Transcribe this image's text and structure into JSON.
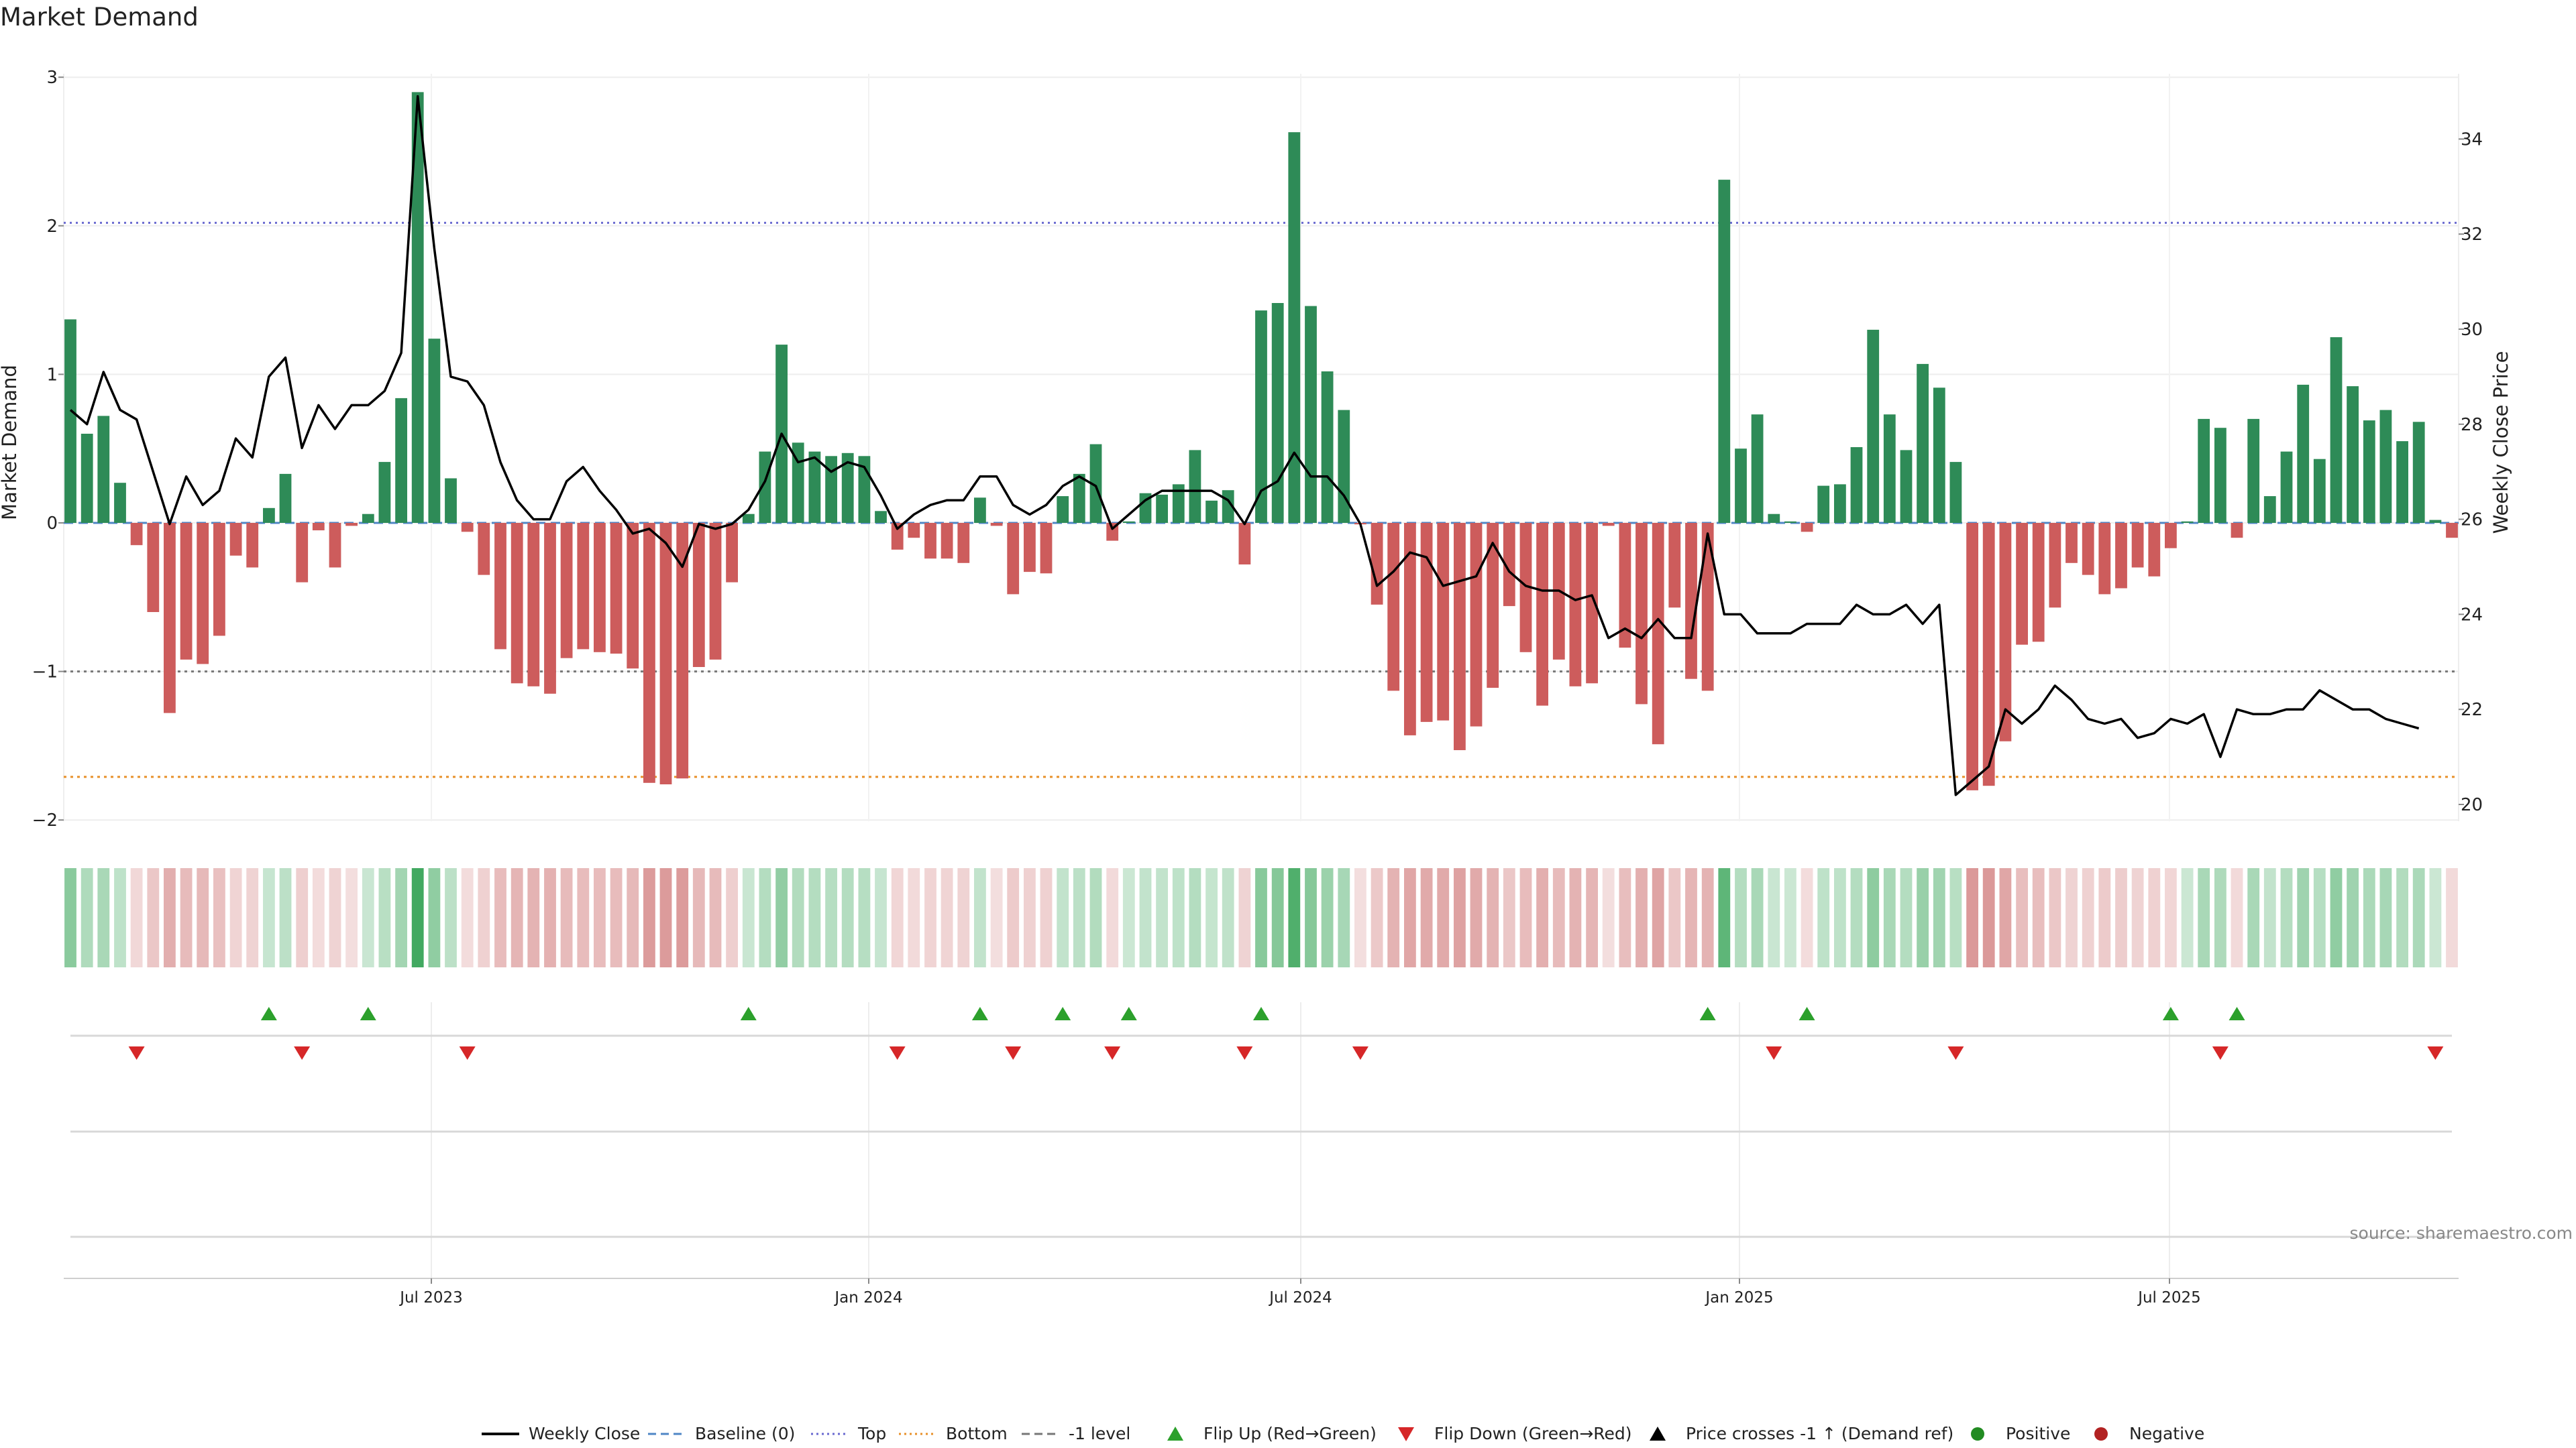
{
  "chart_data": {
    "type": "bar",
    "title": "Market Demand",
    "ylabel_left": "Market Demand",
    "ylabel_right": "Weekly Close Price",
    "ylim_left": [
      -2,
      3
    ],
    "ylim_right": [
      20,
      35
    ],
    "yticks_left": [
      "3",
      "2",
      "1",
      "0",
      "−1",
      "−2"
    ],
    "yticks_right": [
      "34",
      "32",
      "30",
      "28",
      "26",
      "24",
      "22",
      "20"
    ],
    "x_labels": [
      "Jul 2023",
      "Jan 2024",
      "Jul 2024",
      "Jan 2025",
      "Jul 2025"
    ],
    "source": "source: sharemaestro.com",
    "reference_lines": {
      "top": 2.02,
      "minus_one": -1.0,
      "bottom": -1.71,
      "baseline": 0
    },
    "colors": {
      "positive": "#2e8b57",
      "negative": "#cd5c5c",
      "price": "#000000",
      "top": "#6a6ad0",
      "bottom": "#e8902a",
      "minus_one": "#777777",
      "flip_up": "#2ca02c",
      "flip_down": "#d62728"
    },
    "demand": [
      1.37,
      0.6,
      0.72,
      0.27,
      -0.15,
      -0.6,
      -1.28,
      -0.92,
      -0.95,
      -0.76,
      -0.22,
      -0.3,
      0.1,
      0.33,
      -0.4,
      -0.05,
      -0.3,
      -0.02,
      0.06,
      0.41,
      0.84,
      2.9,
      1.24,
      0.3,
      -0.06,
      -0.35,
      -0.85,
      -1.08,
      -1.1,
      -1.15,
      -0.91,
      -0.85,
      -0.87,
      -0.88,
      -0.98,
      -1.75,
      -1.76,
      -1.72,
      -0.97,
      -0.92,
      -0.4,
      0.06,
      0.48,
      1.2,
      0.54,
      0.48,
      0.45,
      0.47,
      0.45,
      0.08,
      -0.18,
      -0.1,
      -0.24,
      -0.24,
      -0.27,
      0.17,
      -0.02,
      -0.48,
      -0.33,
      -0.34,
      0.18,
      0.33,
      0.53,
      -0.12,
      0.01,
      0.2,
      0.19,
      0.26,
      0.49,
      0.15,
      0.22,
      -0.28,
      1.43,
      1.48,
      2.63,
      1.46,
      1.02,
      0.76,
      -0.01,
      -0.55,
      -1.13,
      -1.43,
      -1.34,
      -1.33,
      -1.53,
      -1.37,
      -1.11,
      -0.56,
      -0.87,
      -1.23,
      -0.92,
      -1.1,
      -1.08,
      -0.02,
      -0.84,
      -1.22,
      -1.49,
      -0.57,
      -1.05,
      -1.13,
      2.31,
      0.5,
      0.73,
      0.06,
      0.01,
      -0.06,
      0.25,
      0.26,
      0.51,
      1.3,
      0.73,
      0.49,
      1.07,
      0.91,
      0.41,
      -1.8,
      -1.77,
      -1.47,
      -0.82,
      -0.8,
      -0.57,
      -0.27,
      -0.35,
      -0.48,
      -0.44,
      -0.3,
      -0.36,
      -0.17,
      0.01,
      0.7,
      0.64,
      -0.1,
      0.7,
      0.18,
      0.48,
      0.93,
      0.43,
      1.25,
      0.92,
      0.69,
      0.76,
      0.55,
      0.68,
      0.02,
      -0.1
    ],
    "price": [
      28.3,
      28.0,
      29.1,
      28.3,
      28.1,
      27.0,
      25.9,
      26.9,
      26.3,
      26.6,
      27.7,
      27.3,
      29.0,
      29.4,
      27.5,
      28.4,
      27.9,
      28.4,
      28.4,
      28.7,
      29.5,
      34.9,
      31.7,
      29.0,
      28.9,
      28.4,
      27.2,
      26.4,
      26.0,
      26.0,
      26.8,
      27.1,
      26.6,
      26.2,
      25.7,
      25.8,
      25.5,
      25.0,
      25.9,
      25.8,
      25.9,
      26.2,
      26.8,
      27.8,
      27.2,
      27.3,
      27.0,
      27.2,
      27.1,
      26.5,
      25.8,
      26.1,
      26.3,
      26.4,
      26.4,
      26.9,
      26.9,
      26.3,
      26.1,
      26.3,
      26.7,
      26.9,
      26.7,
      25.8,
      26.1,
      26.4,
      26.6,
      26.6,
      26.6,
      26.6,
      26.4,
      25.9,
      26.6,
      26.8,
      27.4,
      26.9,
      26.9,
      26.5,
      25.9,
      24.6,
      24.9,
      25.3,
      25.2,
      24.6,
      24.7,
      24.8,
      25.5,
      24.9,
      24.6,
      24.5,
      24.5,
      24.3,
      24.4,
      23.5,
      23.7,
      23.5,
      23.9,
      23.5,
      23.5,
      25.7,
      24.0,
      24.0,
      23.6,
      23.6,
      23.6,
      23.8,
      23.8,
      23.8,
      24.2,
      24.0,
      24.0,
      24.2,
      23.8,
      24.2,
      20.2,
      20.5,
      20.8,
      22.0,
      21.7,
      22.0,
      22.5,
      22.2,
      21.8,
      21.7,
      21.8,
      21.4,
      21.5,
      21.8,
      21.7,
      21.9,
      21.0,
      22.0,
      21.9,
      21.9,
      22.0,
      22.0,
      22.4,
      22.2,
      22.0,
      22.0,
      21.8,
      21.7,
      21.6
    ]
  },
  "flips": {
    "up": [
      12,
      18,
      41,
      55,
      60,
      64,
      72,
      99,
      105,
      127,
      131
    ],
    "down": [
      4,
      14,
      24,
      50,
      57,
      63,
      71,
      78,
      103,
      114,
      130,
      143
    ]
  },
  "legend": [
    {
      "label": "Weekly Close",
      "marker": "line",
      "color": "#000000"
    },
    {
      "label": "Baseline (0)",
      "marker": "dash",
      "color": "#4f86c6"
    },
    {
      "label": "Top",
      "marker": "dot",
      "color": "#6a6ad0"
    },
    {
      "label": "Bottom",
      "marker": "dot",
      "color": "#e8902a"
    },
    {
      "label": "-1 level",
      "marker": "dash",
      "color": "#777777"
    },
    {
      "label": "Flip Up (Red→Green)",
      "marker": "tri-up",
      "color": "#2ca02c"
    },
    {
      "label": "Flip Down (Green→Red)",
      "marker": "tri-down",
      "color": "#d62728"
    },
    {
      "label": "Price crosses -1 ↑ (Demand ref)",
      "marker": "tri-up",
      "color": "#000000"
    },
    {
      "label": "Positive",
      "marker": "circle",
      "color": "#228b22"
    },
    {
      "label": "Negative",
      "marker": "circle",
      "color": "#b22222"
    }
  ]
}
